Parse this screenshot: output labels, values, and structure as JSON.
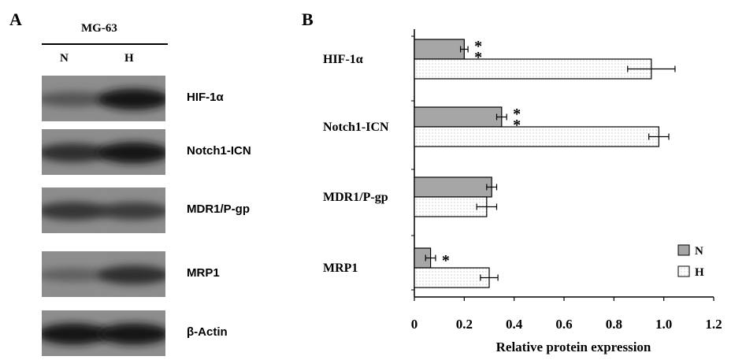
{
  "panel_a": {
    "letter": "A",
    "cell_line": "MG-63",
    "lanes": [
      "N",
      "H"
    ],
    "blots": [
      {
        "label": "HIF-1α",
        "n_band": 0.45,
        "h_band": 0.95
      },
      {
        "label": "Notch1-ICN",
        "n_band": 0.75,
        "h_band": 0.95
      },
      {
        "label": "MDR1/P-gp",
        "n_band": 0.7,
        "h_band": 0.65
      },
      {
        "label": "MRP1",
        "n_band": 0.35,
        "h_band": 0.75
      },
      {
        "label": "β-Actin",
        "n_band": 0.95,
        "h_band": 0.95
      }
    ]
  },
  "panel_b": {
    "letter": "B"
  },
  "chart_data": {
    "type": "bar",
    "orientation": "horizontal",
    "categories": [
      "HIF-1α",
      "Notch1-ICN",
      "MDR1/P-gp",
      "MRP1"
    ],
    "series": [
      {
        "name": "N",
        "values": [
          0.2,
          0.35,
          0.31,
          0.065
        ],
        "errors": [
          0.015,
          0.02,
          0.02,
          0.02
        ],
        "fill": "#a6a6a6"
      },
      {
        "name": "H",
        "values": [
          0.95,
          0.98,
          0.29,
          0.3
        ],
        "errors": [
          0.095,
          0.04,
          0.04,
          0.035
        ],
        "fill": "dotted"
      }
    ],
    "significance": [
      "**",
      "**",
      "",
      "*"
    ],
    "xlabel": "Relative protein expression",
    "xlim": [
      0,
      1.2
    ],
    "xticks": [
      "0",
      "0.2",
      "0.4",
      "0.6",
      "0.8",
      "1.0",
      "1.2"
    ],
    "legend_position": "bottom-right",
    "grid": false
  }
}
